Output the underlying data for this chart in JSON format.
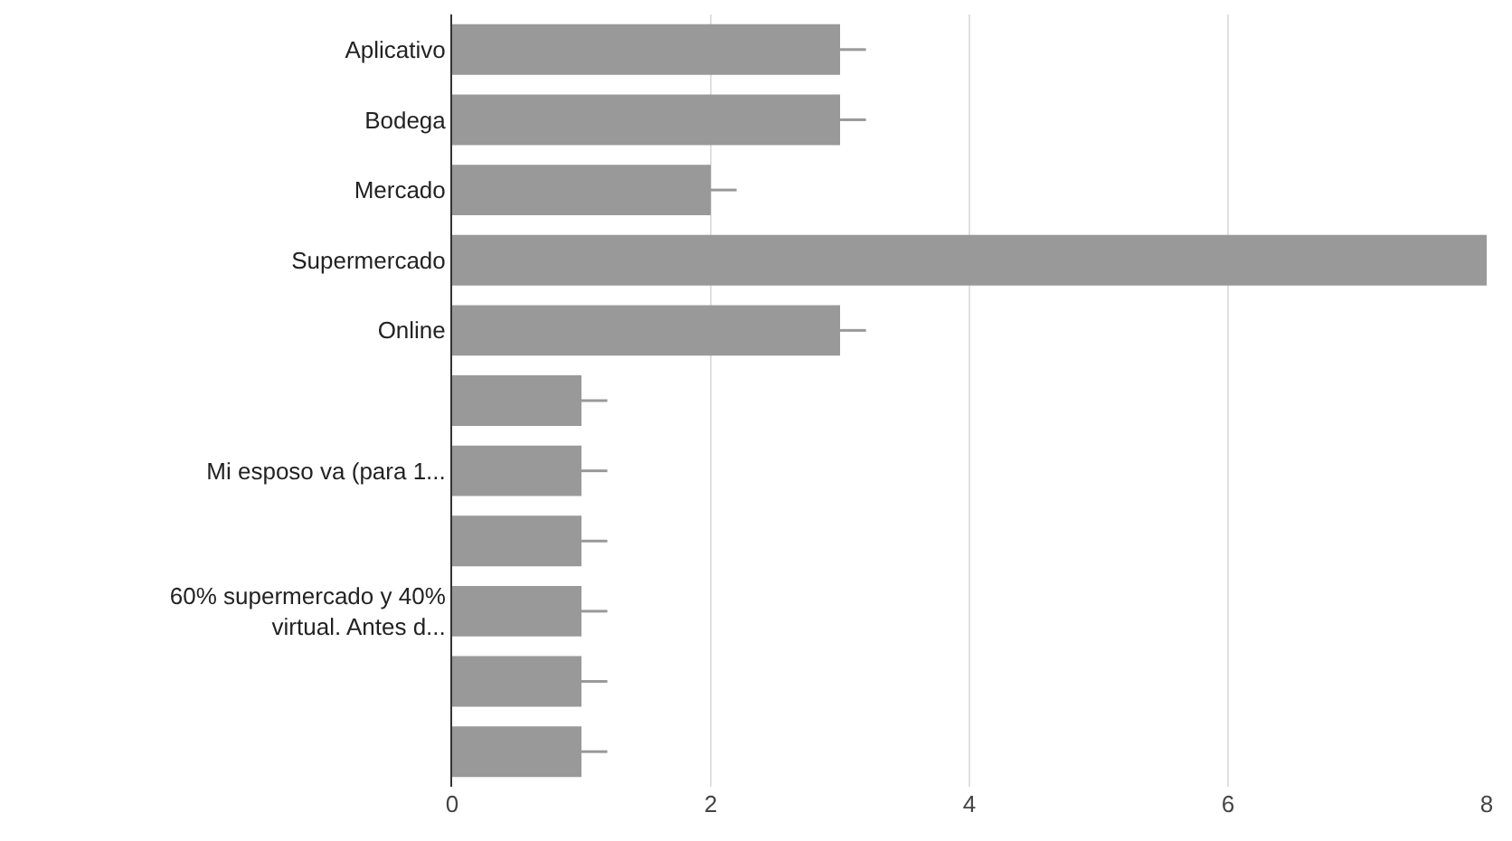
{
  "chart_data": {
    "type": "bar",
    "orientation": "horizontal",
    "categories": [
      "Aplicativo",
      "Bodega",
      "Mercado",
      "Supermercado",
      "Online",
      null,
      "Mi esposo va (para 1...",
      null,
      "60% supermercado y 40% virtual. Antes d...",
      null,
      null
    ],
    "values": [
      3,
      3,
      2,
      8,
      3,
      1,
      1,
      1,
      1,
      1,
      1
    ],
    "errors": [
      [
        3,
        3.2
      ],
      [
        3,
        3.2
      ],
      [
        2,
        2.2
      ],
      null,
      [
        3,
        3.2
      ],
      [
        1,
        1.2
      ],
      [
        1,
        1.2
      ],
      [
        1,
        1.2
      ],
      [
        1,
        1.2
      ],
      [
        1,
        1.2
      ],
      [
        1,
        1.2
      ]
    ],
    "color": "#999999",
    "xlim": [
      0,
      8
    ],
    "xticks": [
      0,
      2,
      4,
      6,
      8
    ],
    "grid": "x",
    "legend": false
  }
}
